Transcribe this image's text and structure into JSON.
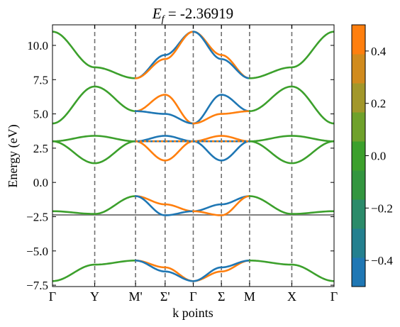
{
  "chart_data": {
    "type": "line",
    "title_main": "E",
    "title_sub": "f",
    "title_rest": " = -2.36919",
    "xlabel": "k points",
    "ylabel": "Energy (eV)",
    "ylim": [
      -7.6,
      11.5
    ],
    "grid": false,
    "kpoint_labels": [
      "Γ",
      "Y",
      "M'",
      "Σ'",
      "Γ",
      "Σ",
      "M",
      "X",
      "Γ"
    ],
    "kpoint_positions": [
      0,
      1.5,
      2.95,
      4.0,
      5.0,
      6.0,
      7.0,
      8.5,
      10.0
    ],
    "yticks": [
      -7.5,
      -5.0,
      -2.5,
      0.0,
      2.5,
      5.0,
      7.5,
      10.0
    ],
    "ytick_labels": [
      "−7.5",
      "−5.0",
      "−2.5",
      "0.0",
      "2.5",
      "5.0",
      "7.5",
      "10.0"
    ],
    "fermi_level": -2.36919,
    "colorbar": {
      "range": [
        -0.5,
        0.5
      ],
      "ticks": [
        -0.4,
        -0.2,
        0.0,
        0.2,
        0.4
      ],
      "tick_labels": [
        "−0.4",
        "−0.2",
        "0.0",
        "0.2",
        "0.4"
      ],
      "colors": [
        "#1f77b4",
        "#24808f",
        "#2b8b6a",
        "#33963f",
        "#3ca02c",
        "#6fa12b",
        "#a2972a",
        "#d18b1d",
        "#ff7f0e"
      ]
    },
    "series_colors": {
      "orange": "#ff7f0e",
      "blue": "#1f77b4",
      "green": "#3ca02c",
      "fermi": "#808080"
    },
    "bands": [
      {
        "color": "green",
        "x": [
          0,
          1.5,
          2.95
        ],
        "y": [
          -7.2,
          -6.0,
          -5.7
        ]
      },
      {
        "color": "orange",
        "x": [
          2.95,
          4.0,
          5.0
        ],
        "y": [
          -5.7,
          -6.2,
          -7.2
        ]
      },
      {
        "color": "blue",
        "x": [
          2.95,
          4.0,
          5.0
        ],
        "y": [
          -5.7,
          -6.5,
          -7.2
        ]
      },
      {
        "color": "orange",
        "x": [
          5.0,
          6.0,
          7.0
        ],
        "y": [
          -7.2,
          -6.5,
          -5.7
        ]
      },
      {
        "color": "blue",
        "x": [
          5.0,
          6.0,
          7.0
        ],
        "y": [
          -7.2,
          -6.2,
          -5.7
        ]
      },
      {
        "color": "green",
        "x": [
          7.0,
          8.5,
          10.0
        ],
        "y": [
          -5.7,
          -6.0,
          -7.2
        ]
      },
      {
        "color": "green",
        "x": [
          0,
          1.5,
          2.95
        ],
        "y": [
          -2.1,
          -2.3,
          -1.0
        ]
      },
      {
        "color": "orange",
        "x": [
          2.95,
          4.0,
          5.0
        ],
        "y": [
          -1.0,
          -1.6,
          -2.1
        ]
      },
      {
        "color": "blue",
        "x": [
          2.95,
          4.0,
          5.0
        ],
        "y": [
          -1.0,
          -2.4,
          -2.1
        ]
      },
      {
        "color": "blue",
        "x": [
          5.0,
          6.0,
          7.0
        ],
        "y": [
          -2.1,
          -1.6,
          -1.0
        ]
      },
      {
        "color": "orange",
        "x": [
          5.0,
          6.0,
          7.0
        ],
        "y": [
          -2.1,
          -2.4,
          -1.0
        ]
      },
      {
        "color": "green",
        "x": [
          7.0,
          8.5,
          10.0
        ],
        "y": [
          -1.0,
          -2.3,
          -2.1
        ]
      },
      {
        "color": "green",
        "x": [
          0,
          1.5,
          2.95
        ],
        "y": [
          3.0,
          1.4,
          3.0
        ]
      },
      {
        "color": "green",
        "x": [
          0,
          1.5,
          2.95
        ],
        "y": [
          3.0,
          3.4,
          3.0
        ]
      },
      {
        "color": "orange",
        "x": [
          2.95,
          4.0,
          5.0
        ],
        "y": [
          3.0,
          1.6,
          3.0
        ]
      },
      {
        "color": "blue",
        "x": [
          2.95,
          4.0,
          5.0
        ],
        "y": [
          3.0,
          3.4,
          3.0
        ]
      },
      {
        "color": "blue",
        "x": [
          5.0,
          6.0,
          7.0
        ],
        "y": [
          3.0,
          1.6,
          3.0
        ]
      },
      {
        "color": "orange",
        "x": [
          5.0,
          6.0,
          7.0
        ],
        "y": [
          3.0,
          3.4,
          3.0
        ]
      },
      {
        "color": "green",
        "x": [
          7.0,
          8.5,
          10.0
        ],
        "y": [
          3.0,
          1.4,
          3.0
        ]
      },
      {
        "color": "green",
        "x": [
          7.0,
          8.5,
          10.0
        ],
        "y": [
          3.0,
          3.4,
          3.0
        ]
      },
      {
        "color": "green",
        "x": [
          0,
          1.5,
          2.95
        ],
        "y": [
          4.3,
          7.0,
          5.2
        ]
      },
      {
        "color": "orange",
        "x": [
          2.95,
          4.0,
          5.0
        ],
        "y": [
          5.2,
          6.4,
          4.3
        ]
      },
      {
        "color": "blue",
        "x": [
          2.95,
          4.0,
          5.0
        ],
        "y": [
          5.2,
          5.0,
          4.3
        ]
      },
      {
        "color": "blue",
        "x": [
          5.0,
          6.0,
          7.0
        ],
        "y": [
          4.3,
          6.4,
          5.2
        ]
      },
      {
        "color": "orange",
        "x": [
          5.0,
          6.0,
          7.0
        ],
        "y": [
          4.3,
          5.0,
          5.2
        ]
      },
      {
        "color": "green",
        "x": [
          7.0,
          8.5,
          10.0
        ],
        "y": [
          5.2,
          7.0,
          4.3
        ]
      },
      {
        "color": "green",
        "x": [
          0,
          1.5,
          2.95
        ],
        "y": [
          11.0,
          8.4,
          7.6
        ]
      },
      {
        "color": "blue",
        "x": [
          2.95,
          4.0,
          5.0
        ],
        "y": [
          7.6,
          9.3,
          11.0
        ]
      },
      {
        "color": "orange",
        "x": [
          2.95,
          4.0,
          5.0
        ],
        "y": [
          7.6,
          9.0,
          11.0
        ]
      },
      {
        "color": "orange",
        "x": [
          5.0,
          6.0,
          7.0
        ],
        "y": [
          11.0,
          9.3,
          7.6
        ]
      },
      {
        "color": "blue",
        "x": [
          5.0,
          6.0,
          7.0
        ],
        "y": [
          11.0,
          9.0,
          7.6
        ]
      },
      {
        "color": "green",
        "x": [
          7.0,
          8.5,
          10.0
        ],
        "y": [
          7.6,
          8.4,
          11.0
        ]
      }
    ],
    "flat_bands": [
      {
        "x": [
          2.95,
          7.0
        ],
        "y": [
          3.0,
          3.0
        ],
        "colors": [
          "orange",
          "blue"
        ]
      }
    ]
  }
}
